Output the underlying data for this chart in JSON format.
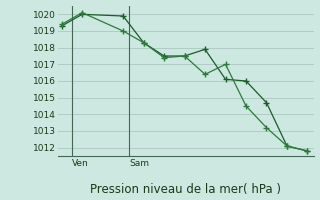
{
  "title": "Pression niveau de la mer( hPa )",
  "background_color": "#cce8e0",
  "grid_color": "#b0ccc4",
  "line_color1": "#1a5c2a",
  "line_color2": "#2d7a3a",
  "ylim": [
    1011.5,
    1020.5
  ],
  "yticks": [
    1012,
    1013,
    1014,
    1015,
    1016,
    1017,
    1018,
    1019,
    1020
  ],
  "series1_x": [
    0,
    1,
    3,
    4,
    5,
    6,
    7,
    8,
    9,
    10,
    11,
    12
  ],
  "series1_y": [
    1019.3,
    1020.0,
    1019.9,
    1018.3,
    1017.5,
    1017.5,
    1017.9,
    1016.1,
    1016.0,
    1014.7,
    1012.1,
    1011.8
  ],
  "series2_x": [
    0,
    1,
    3,
    4,
    5,
    6,
    7,
    8,
    9,
    10,
    11,
    12
  ],
  "series2_y": [
    1019.4,
    1020.1,
    1019.0,
    1018.3,
    1017.4,
    1017.5,
    1016.4,
    1017.0,
    1014.5,
    1013.2,
    1012.1,
    1011.8
  ],
  "ven_x_data": 0.5,
  "sam_x_data": 3.5,
  "ven_line_x": 0.5,
  "sam_line_x": 3.3,
  "xlim": [
    -0.2,
    12.3
  ],
  "tick_fontsize": 6.5,
  "xlabel_fontsize": 8.5,
  "ven_label": "Ven",
  "sam_label": "Sam"
}
